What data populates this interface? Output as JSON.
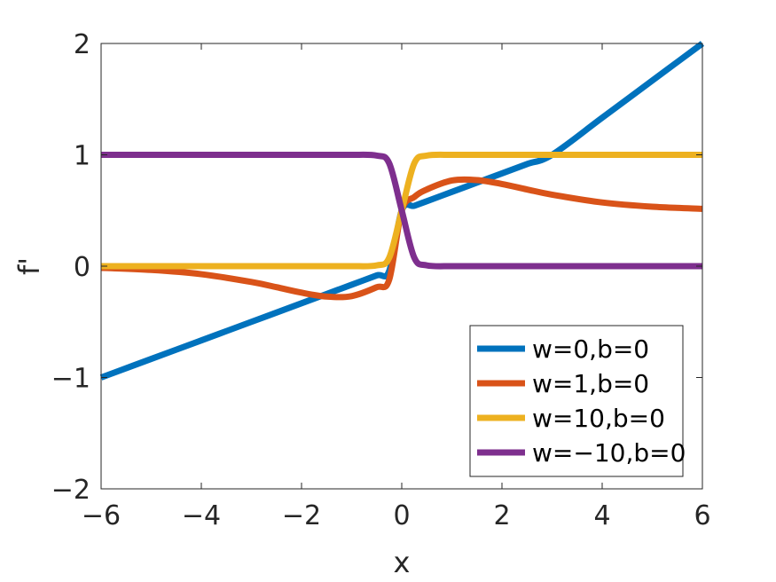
{
  "chart_data": {
    "type": "line",
    "xlabel": "x",
    "ylabel": "f'",
    "xlim": [
      -6,
      6
    ],
    "ylim": [
      -2,
      2
    ],
    "xticks": [
      "−6",
      "−4",
      "−2",
      "0",
      "2",
      "4",
      "6"
    ],
    "yticks": [
      "−2",
      "−1",
      "0",
      "1",
      "2"
    ],
    "grid": false,
    "legend_position": "bottom-right",
    "x": [
      -6,
      -5,
      -4,
      -3,
      -2.5,
      -2,
      -1.5,
      -1,
      -0.5,
      -0.25,
      0,
      0.25,
      0.5,
      1,
      1.5,
      2,
      2.5,
      3,
      4,
      5,
      6
    ],
    "series": [
      {
        "name": "w=0,b=0",
        "color": "#0072BD",
        "values": [
          -1,
          -0.833,
          -0.667,
          -0.5,
          -0.417,
          -0.333,
          -0.25,
          -0.167,
          -0.083,
          -0.042,
          0.5,
          0.542,
          0.583,
          0.667,
          0.75,
          0.833,
          0.917,
          1,
          1.333,
          1.667,
          2
        ]
      },
      {
        "name": "w=1,b=0",
        "color": "#D95319",
        "values": [
          -0.015,
          -0.034,
          -0.072,
          -0.142,
          -0.189,
          -0.238,
          -0.273,
          -0.269,
          -0.189,
          -0.121,
          0.5,
          0.621,
          0.689,
          0.769,
          0.773,
          0.738,
          0.689,
          0.642,
          0.572,
          0.534,
          0.515
        ]
      },
      {
        "name": "w=10,b=0",
        "color": "#EDB120",
        "values": [
          0,
          0,
          0,
          0,
          0,
          0,
          0,
          0,
          0.007,
          0.076,
          0.5,
          0.924,
          0.993,
          1,
          1,
          1,
          1,
          1,
          1,
          1,
          1
        ]
      },
      {
        "name": "w=−10,b=0",
        "color": "#7E2F8E",
        "values": [
          1,
          1,
          1,
          1,
          1,
          1,
          1,
          1,
          0.993,
          0.924,
          0.5,
          0.076,
          0.007,
          0,
          0,
          0,
          0,
          0,
          0,
          0,
          0
        ]
      }
    ]
  }
}
